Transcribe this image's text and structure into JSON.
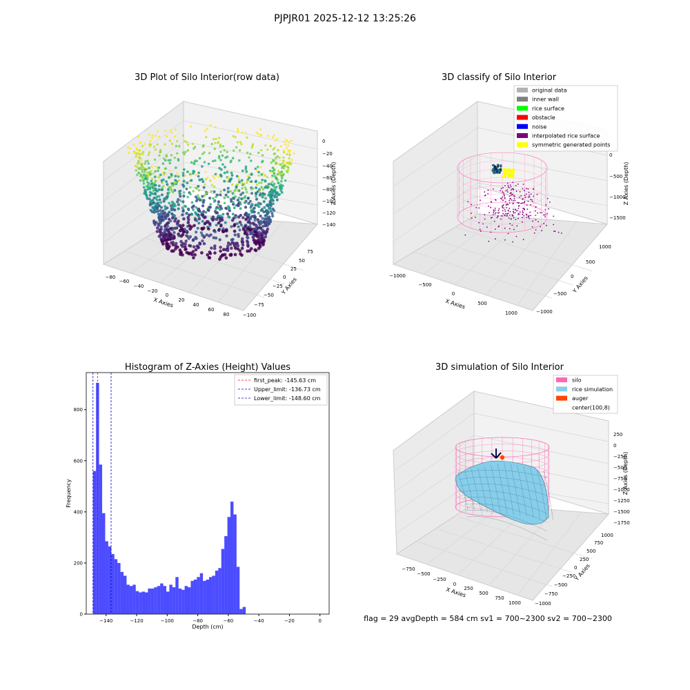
{
  "figure": {
    "suptitle": "PJPJR01 2025-12-12 13:25:26",
    "status_line": "flag = 29  avgDepth = 584 cm  sv1 = 700~2300  sv2 = 700~2300"
  },
  "colors": {
    "silo": "#ff69b4",
    "rice_simulation": "#87ceeb",
    "auger": "#ff4500",
    "hist_bar": "#0000ff",
    "first_peak": "#ff0000",
    "limit": "#0000cd"
  },
  "chart_data": [
    {
      "type": "scatter",
      "subtype": "3d-scatter",
      "title": "3D Plot of Silo Interior(row data)",
      "xlabel": "X Axies",
      "ylabel": "Y Axies",
      "zlabel": "Z Axies (Depth)",
      "x_ticks": [
        "−80",
        "−60",
        "−40",
        "−20",
        "0",
        "20",
        "40",
        "60",
        "80"
      ],
      "y_ticks": [
        "−100",
        "−75",
        "−50",
        "−25",
        "0",
        "25",
        "50",
        "75"
      ],
      "z_ticks": [
        "0",
        "−20",
        "−40",
        "−60",
        "−80",
        "−100",
        "−120",
        "−140"
      ],
      "xlim": [
        -85,
        85
      ],
      "ylim": [
        -100,
        85
      ],
      "zlim": [
        -150,
        5
      ],
      "colormap": "viridis"
    },
    {
      "type": "scatter",
      "subtype": "3d-classified",
      "title": "3D classify of Silo Interior",
      "xlabel": "X Axies",
      "ylabel": "Y Axies",
      "zlabel": "Z Axies (Depth)",
      "x_ticks": [
        "−1000",
        "−500",
        "0",
        "500",
        "1000"
      ],
      "y_ticks": [
        "−1000",
        "−500",
        "0",
        "500",
        "1000"
      ],
      "z_ticks": [
        "0",
        "−500",
        "−1000",
        "−1500"
      ],
      "legend_position": "top-right",
      "legend": [
        {
          "label": "original data",
          "color": "#b3b3b3"
        },
        {
          "label": "inner wall",
          "color": "#808080"
        },
        {
          "label": "rice surface",
          "color": "#00ff00"
        },
        {
          "label": "obstacle",
          "color": "#ff0000"
        },
        {
          "label": "noise",
          "color": "#0000ff"
        },
        {
          "label": "interpolated rice surface",
          "color": "#800080"
        },
        {
          "label": "symmetric generated points",
          "color": "#ffff00"
        }
      ]
    },
    {
      "type": "bar",
      "subtype": "histogram",
      "title": "Histogram of Z-Axies (Height) Values",
      "xlabel": "Depth (cm)",
      "ylabel": "Frequency",
      "xlim": [
        -153,
        6
      ],
      "ylim": [
        0,
        945
      ],
      "x_ticks": [
        -140,
        -120,
        -100,
        -80,
        -60,
        -40,
        -20,
        0
      ],
      "y_ticks": [
        0,
        200,
        400,
        600,
        800
      ],
      "bin_start": -148.6,
      "bin_width": 2.0,
      "values": [
        560,
        905,
        585,
        395,
        285,
        265,
        235,
        215,
        200,
        165,
        150,
        115,
        110,
        115,
        90,
        85,
        88,
        85,
        100,
        100,
        105,
        110,
        120,
        110,
        88,
        115,
        105,
        145,
        100,
        95,
        110,
        105,
        130,
        135,
        145,
        160,
        130,
        135,
        145,
        150,
        170,
        180,
        255,
        305,
        380,
        440,
        390,
        185,
        20,
        28
      ],
      "vlines": [
        {
          "label": "first_peak: -145.63 cm",
          "x": -145.63,
          "color": "#ff0000"
        },
        {
          "label": "Upper_limit: -136.73 cm",
          "x": -136.73,
          "color": "#0000cd"
        },
        {
          "label": "Lower_limit: -148.60 cm",
          "x": -148.6,
          "color": "#0000cd"
        }
      ],
      "legend_position": "top-right"
    },
    {
      "type": "area",
      "subtype": "3d-surface",
      "title": "3D simulation of Silo Interior",
      "xlabel": "X Axies",
      "ylabel": "Y Axies",
      "zlabel": "Z Axies (Depth)",
      "x_ticks": [
        "−750",
        "−500",
        "−250",
        "0",
        "250",
        "500",
        "750",
        "1000"
      ],
      "y_ticks": [
        "−1000",
        "−750",
        "−500",
        "−250",
        "0",
        "250",
        "500",
        "750",
        "1000"
      ],
      "z_ticks": [
        "250",
        "0",
        "−250",
        "−500",
        "−750",
        "−1000",
        "−1250",
        "−1500",
        "−1750"
      ],
      "legend_position": "top-right",
      "legend": [
        {
          "label": "silo",
          "color": "#ff69b4"
        },
        {
          "label": "rice simulation",
          "color": "#87ceeb"
        },
        {
          "label": "auger",
          "color": "#ff4500"
        },
        {
          "label": "center(100,8)",
          "color": ""
        }
      ]
    }
  ]
}
